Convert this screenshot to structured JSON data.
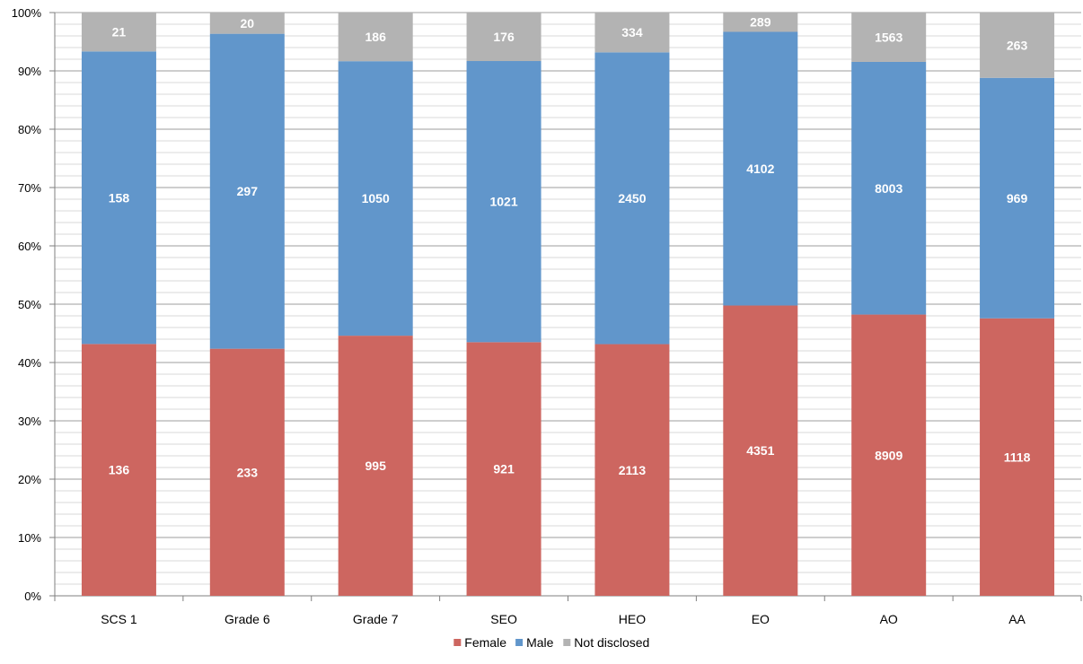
{
  "chart_data": {
    "type": "bar",
    "stacked": "percent",
    "categories": [
      "SCS 1",
      "Grade 6",
      "Grade 7",
      "SEO",
      "HEO",
      "EO",
      "AO",
      "AA"
    ],
    "series": [
      {
        "name": "Female",
        "color": "#CD6660",
        "values": [
          136,
          233,
          995,
          921,
          2113,
          4351,
          8909,
          1118
        ]
      },
      {
        "name": "Male",
        "color": "#6196CB",
        "values": [
          158,
          297,
          1050,
          1021,
          2450,
          4102,
          8003,
          969
        ]
      },
      {
        "name": "Not disclosed",
        "color": "#B3B3B3",
        "values": [
          21,
          20,
          186,
          176,
          334,
          289,
          1563,
          263
        ]
      }
    ],
    "y_ticks": [
      "0%",
      "10%",
      "20%",
      "30%",
      "40%",
      "50%",
      "60%",
      "70%",
      "80%",
      "90%",
      "100%"
    ],
    "ylim": [
      0,
      100
    ],
    "grid": true,
    "legend": "bottom"
  }
}
